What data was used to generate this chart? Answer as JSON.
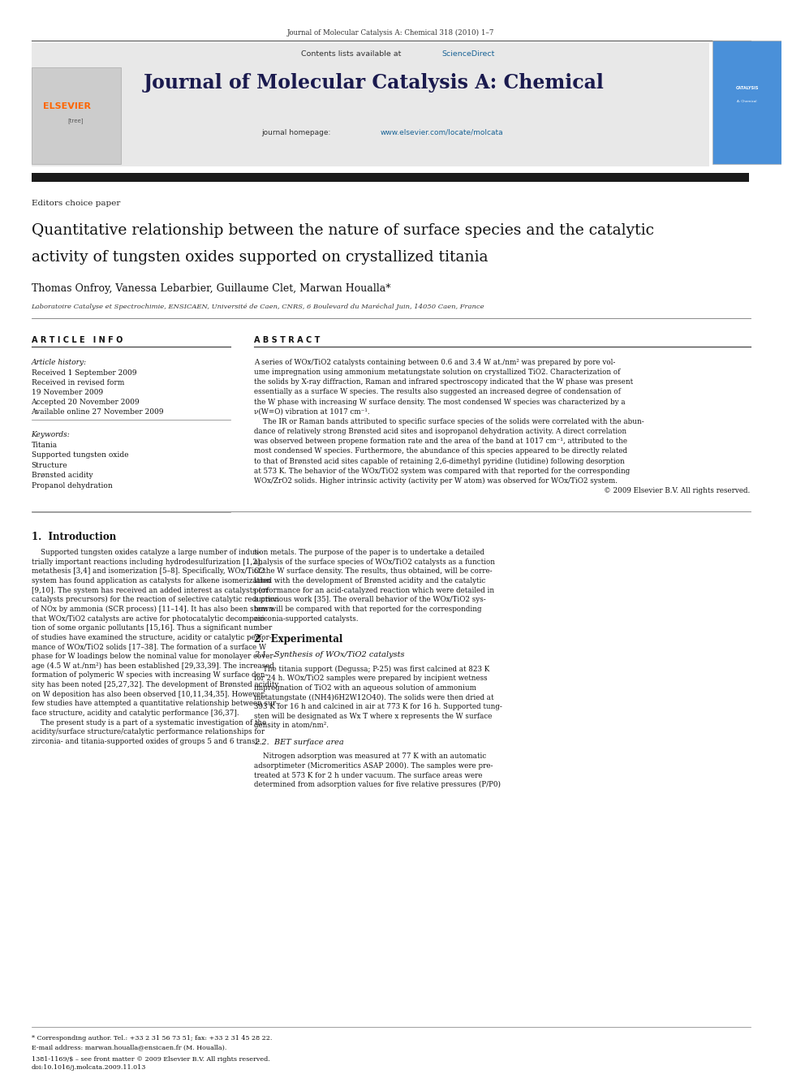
{
  "page_width": 9.92,
  "page_height": 13.23,
  "background_color": "#ffffff",
  "journal_citation": "Journal of Molecular Catalysis A: Chemical 318 (2010) 1–7",
  "header_bg": "#e8e8e8",
  "header_text": "Contents lists available at ",
  "sciencedirect_text": "ScienceDirect",
  "sciencedirect_color": "#1a6496",
  "journal_title": "Journal of Molecular Catalysis A: Chemical",
  "homepage_color": "#1a6496",
  "elsevier_color": "#ff6600",
  "paper_type": "Editors choice paper",
  "article_title_line1": "Quantitative relationship between the nature of surface species and the catalytic",
  "article_title_line2": "activity of tungsten oxides supported on crystallized titania",
  "authors": "Thomas Onfroy, Vanessa Lebarbier, Guillaume Clet, Marwan Houalla*",
  "affiliation": "Laboratoire Catalyse et Spectrochimie, ENSICAEN, Université de Caen, CNRS, 6 Boulevard du Maréchal Juin, 14050 Caen, France",
  "section_article_info": "A R T I C L E   I N F O",
  "section_abstract": "A B S T R A C T",
  "article_history_label": "Article history:",
  "received1": "Received 1 September 2009",
  "received_revised": "Received in revised form",
  "received_revised_date": "19 November 2009",
  "accepted": "Accepted 20 November 2009",
  "available_online": "Available online 27 November 2009",
  "keywords_label": "Keywords:",
  "keywords": [
    "Titania",
    "Supported tungsten oxide",
    "Structure",
    "Brønsted acidity",
    "Propanol dehydration"
  ],
  "abstract_lines": [
    "A series of WOx/TiO2 catalysts containing between 0.6 and 3.4 W at./nm² was prepared by pore vol-",
    "ume impregnation using ammonium metatungstate solution on crystallized TiO2. Characterization of",
    "the solids by X-ray diffraction, Raman and infrared spectroscopy indicated that the W phase was present",
    "essentially as a surface W species. The results also suggested an increased degree of condensation of",
    "the W phase with increasing W surface density. The most condensed W species was characterized by a",
    "ν(W=O) vibration at 1017 cm⁻¹.",
    "    The IR or Raman bands attributed to specific surface species of the solids were correlated with the abun-",
    "dance of relatively strong Brønsted acid sites and isopropanol dehydration activity. A direct correlation",
    "was observed between propene formation rate and the area of the band at 1017 cm⁻¹, attributed to the",
    "most condensed W species. Furthermore, the abundance of this species appeared to be directly related",
    "to that of Brønsted acid sites capable of retaining 2,6-dimethyl pyridine (lutidine) following desorption",
    "at 573 K. The behavior of the WOx/TiO2 system was compared with that reported for the corresponding",
    "WOx/ZrO2 solids. Higher intrinsic activity (activity per W atom) was observed for WOx/TiO2 system.",
    "© 2009 Elsevier B.V. All rights reserved."
  ],
  "intro_heading": "1.  Introduction",
  "intro_col1_lines": [
    "    Supported tungsten oxides catalyze a large number of indus-",
    "trially important reactions including hydrodesulfurization [1,2],",
    "metathesis [3,4] and isomerization [5–8]. Specifically, WOx/TiO2",
    "system has found application as catalysts for alkene isomerization",
    "[9,10]. The system has received an added interest as catalysts (or",
    "catalysts precursors) for the reaction of selective catalytic reduction",
    "of NOx by ammonia (SCR process) [11–14]. It has also been shown",
    "that WOx/TiO2 catalysts are active for photocatalytic decomposi-",
    "tion of some organic pollutants [15,16]. Thus a significant number",
    "of studies have examined the structure, acidity or catalytic perfor-",
    "mance of WOx/TiO2 solids [17–38]. The formation of a surface W",
    "phase for W loadings below the nominal value for monolayer cover-",
    "age (4.5 W at./nm²) has been established [29,33,39]. The increased",
    "formation of polymeric W species with increasing W surface den-",
    "sity has been noted [25,27,32]. The development of Brønsted acidity",
    "on W deposition has also been observed [10,11,34,35]. However,",
    "few studies have attempted a quantitative relationship between sur-",
    "face structure, acidity and catalytic performance [36,37].",
    "    The present study is a part of a systematic investigation of the",
    "acidity/surface structure/catalytic performance relationships for",
    "zirconia- and titania-supported oxides of groups 5 and 6 transi-"
  ],
  "intro_col2_lines": [
    "tion metals. The purpose of the paper is to undertake a detailed",
    "analysis of the surface species of WOx/TiO2 catalysts as a function",
    "of the W surface density. The results, thus obtained, will be corre-",
    "lated with the development of Brønsted acidity and the catalytic",
    "performance for an acid-catalyzed reaction which were detailed in",
    "a previous work [35]. The overall behavior of the WOx/TiO2 sys-",
    "tem will be compared with that reported for the corresponding",
    "zirconia-supported catalysts."
  ],
  "experimental_heading": "2.  Experimental",
  "experimental_subheading": "2.1.  Synthesis of WOx/TiO2 catalysts",
  "experimental_lines": [
    "    The titania support (Degussa; P-25) was first calcined at 823 K",
    "for 24 h. WOx/TiO2 samples were prepared by incipient wetness",
    "impregnation of TiO2 with an aqueous solution of ammonium",
    "metatungstate ((NH4)6H2W12O40). The solids were then dried at",
    "393 K for 16 h and calcined in air at 773 K for 16 h. Supported tung-",
    "sten will be designated as Wx T where x represents the W surface",
    "density in atom/nm²."
  ],
  "bet_subheading": "2.2.  BET surface area",
  "bet_lines": [
    "    Nitrogen adsorption was measured at 77 K with an automatic",
    "adsorptimeter (Micromeritics ASAP 2000). The samples were pre-",
    "treated at 573 K for 2 h under vacuum. The surface areas were",
    "determined from adsorption values for five relative pressures (P/P0)"
  ],
  "footnote_star": "* Corresponding author. Tel.: +33 2 31 56 73 51; fax: +33 2 31 45 28 22.",
  "footnote_email": "E-mail address: marwan.houalla@ensicaen.fr (M. Houalla).",
  "issn_line": "1381-1169/$ – see front matter © 2009 Elsevier B.V. All rights reserved.",
  "doi_line": "doi:10.1016/j.molcata.2009.11.013"
}
